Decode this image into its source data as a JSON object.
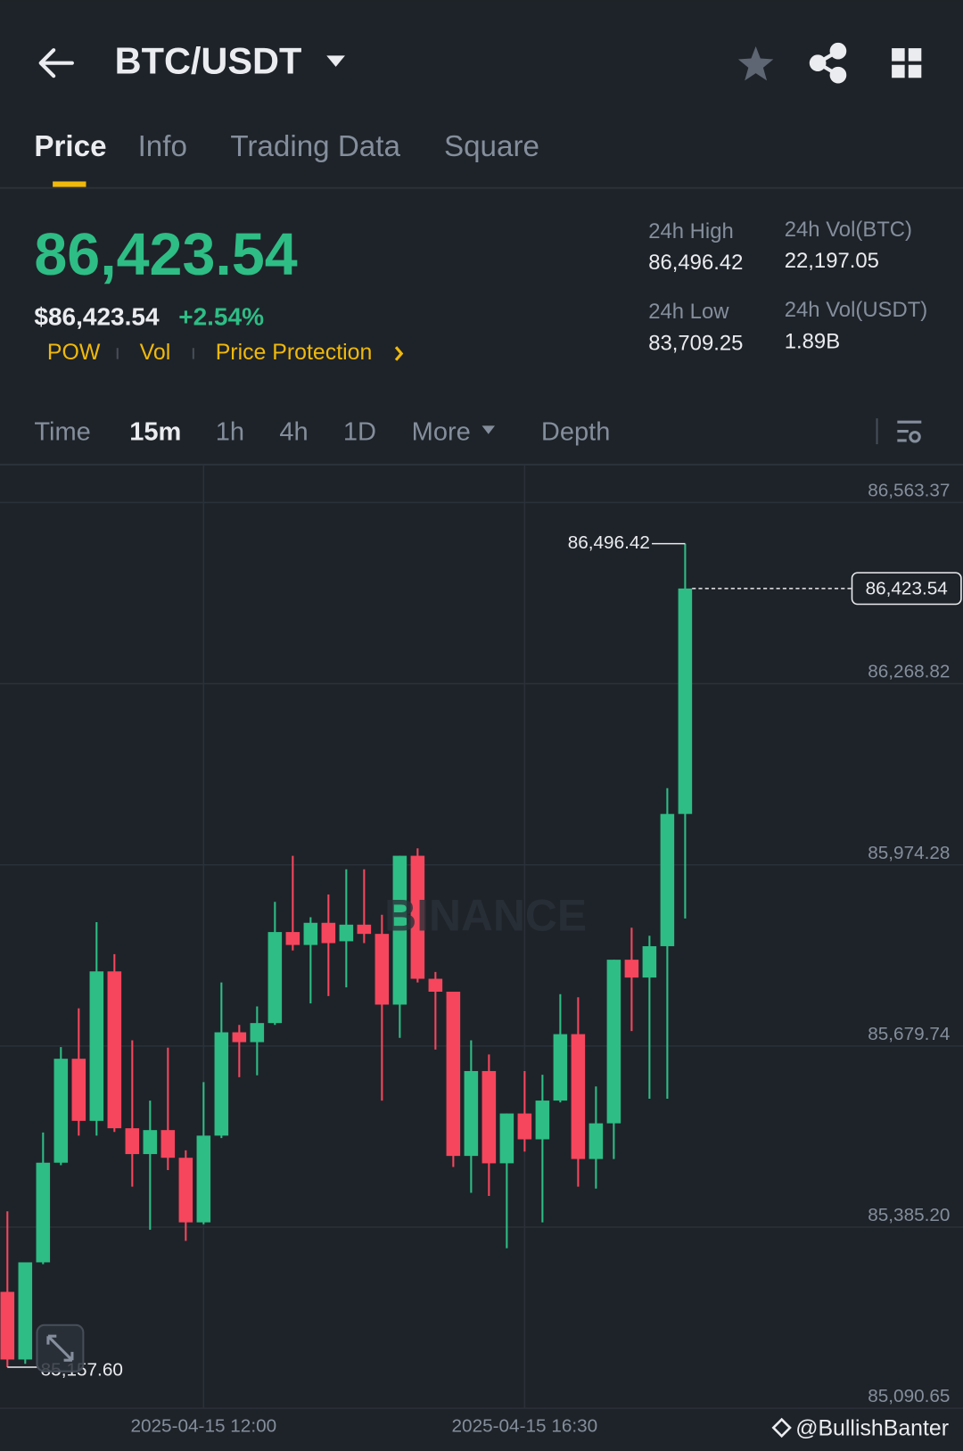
{
  "header": {
    "pair": "BTC/USDT"
  },
  "tabs": [
    "Price",
    "Info",
    "Trading Data",
    "Square"
  ],
  "price": {
    "last": "86,423.54",
    "fiat": "$86,423.54",
    "change": "+2.54%",
    "tags": [
      "POW",
      "Vol",
      "Price Protection"
    ]
  },
  "stats": [
    {
      "label": "24h High",
      "value": "86,496.42"
    },
    {
      "label": "24h Vol(BTC)",
      "value": "22,197.05"
    },
    {
      "label": "24h Low",
      "value": "83,709.25"
    },
    {
      "label": "24h Vol(USDT)",
      "value": "1.89B"
    }
  ],
  "intervals": [
    "Time",
    "15m",
    "1h",
    "4h",
    "1D",
    "More",
    "Depth"
  ],
  "watermark": "BINANCE",
  "credit": "@BullishBanter",
  "chart_data": {
    "type": "candlestick",
    "categories": [
      null,
      null,
      null,
      null,
      null,
      null,
      null,
      null,
      null,
      null,
      null,
      "2025-04-15 12:00",
      null,
      null,
      null,
      null,
      null,
      null,
      null,
      null,
      null,
      null,
      null,
      null,
      null,
      null,
      null,
      null,
      null,
      "2025-04-15 16:30",
      null,
      null,
      null,
      null,
      null,
      null,
      null,
      null,
      null
    ],
    "open": [
      85280,
      85170,
      85328,
      85490,
      85659,
      85558,
      85801,
      85546,
      85504,
      85543,
      85498,
      85393,
      85534,
      85702,
      85686,
      85717,
      85865,
      85844,
      85880,
      85850,
      85877,
      85862,
      85747,
      85989,
      85789,
      85768,
      85501,
      85639,
      85489,
      85570,
      85528,
      85591,
      85699,
      85496,
      85554,
      85820,
      85791,
      85842,
      86057
    ],
    "high": [
      85411,
      85328,
      85539,
      85678,
      85741,
      85881,
      85829,
      85689,
      85591,
      85677,
      85510,
      85621,
      85783,
      85714,
      85744,
      85914,
      85989,
      85889,
      85926,
      85967,
      85967,
      85893,
      85989,
      86001,
      85800,
      85768,
      85689,
      85666,
      85570,
      85639,
      85633,
      85764,
      85759,
      85614,
      85820,
      85872,
      85859,
      86099,
      86496.42
    ],
    "low": [
      85157.6,
      85163,
      85325,
      85486,
      85534,
      85534,
      85540,
      85451,
      85381,
      85478,
      85363,
      85390,
      85530,
      85629,
      85632,
      85714,
      85835,
      85749,
      85761,
      85775,
      85847,
      85591,
      85693,
      85783,
      85674,
      85483,
      85441,
      85436,
      85351,
      85508,
      85393,
      85588,
      85451,
      85448,
      85496,
      85704,
      85594,
      85594,
      85887
    ],
    "close": [
      85170,
      85328,
      85490,
      85659,
      85558,
      85801,
      85546,
      85504,
      85543,
      85498,
      85393,
      85534,
      85702,
      85686,
      85717,
      85865,
      85844,
      85880,
      85847,
      85877,
      85862,
      85747,
      85989,
      85789,
      85768,
      85501,
      85639,
      85489,
      85570,
      85528,
      85591,
      85699,
      85496,
      85554,
      85820,
      85791,
      85842,
      86057,
      86423.54
    ],
    "up_color": "#2ebd85",
    "down_color": "#f6465d",
    "ylim": [
      85090.65,
      86623.5
    ],
    "yticks": [
      {
        "value": 86563.37,
        "label": "86,563.37"
      },
      {
        "value": 86268.82,
        "label": "86,268.82"
      },
      {
        "value": 85974.28,
        "label": "85,974.28"
      },
      {
        "value": 85679.74,
        "label": "85,679.74"
      },
      {
        "value": 85385.2,
        "label": "85,385.20"
      },
      {
        "value": 85090.65,
        "label": "85,090.65"
      }
    ],
    "grid": true,
    "high_label": {
      "value": 86496.42,
      "label": "86,496.42"
    },
    "low_label": {
      "value": 85157.6,
      "label": "85,157.60"
    },
    "last_price": {
      "value": 86423.54,
      "label": "86,423.54"
    }
  }
}
